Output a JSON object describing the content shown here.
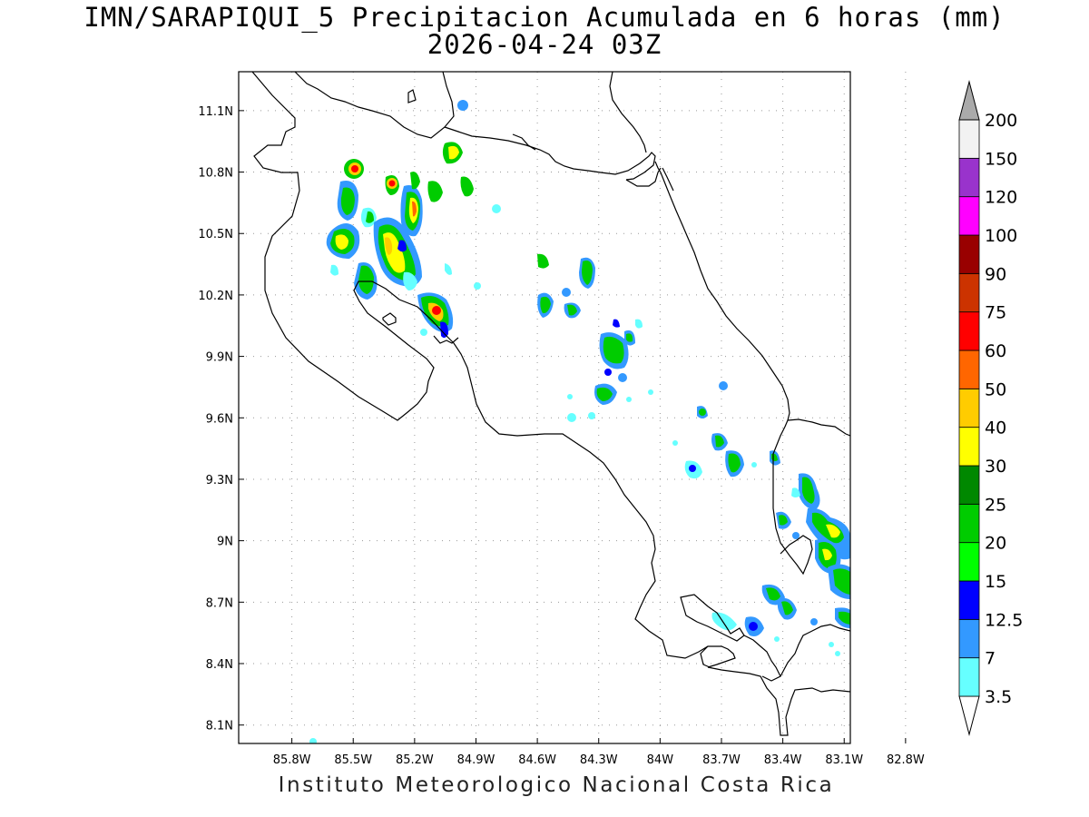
{
  "title": {
    "line1": "IMN/SARAPIQUI_5 Precipitacion Acumulada en 6 horas (mm)",
    "line2": "2026-04-24 03Z"
  },
  "footer": "Instituto Meteorologico Nacional Costa Rica",
  "map": {
    "lon_range": [
      -86.06,
      -83.07
    ],
    "lat_range": [
      8.01,
      11.29
    ],
    "lat_ticks": [
      "11.1N",
      "10.8N",
      "10.5N",
      "10.2N",
      "9.9N",
      "9.6N",
      "9.3N",
      "9N",
      "8.7N",
      "8.4N",
      "8.1N"
    ],
    "lat_values": [
      11.1,
      10.8,
      10.5,
      10.2,
      9.9,
      9.6,
      9.3,
      9.0,
      8.7,
      8.4,
      8.1
    ],
    "lon_ticks": [
      "85.8W",
      "85.5W",
      "85.2W",
      "84.9W",
      "84.6W",
      "84.3W",
      "84W",
      "83.7W",
      "83.4W",
      "83.1W",
      "82.8W"
    ],
    "lon_values": [
      -85.8,
      -85.5,
      -85.2,
      -84.9,
      -84.6,
      -84.3,
      -84.0,
      -83.7,
      -83.4,
      -83.1,
      -82.8
    ],
    "grid": true
  },
  "legend": {
    "labels": [
      "3.5",
      "7",
      "12.5",
      "15",
      "20",
      "25",
      "30",
      "40",
      "50",
      "60",
      "75",
      "90",
      "100",
      "120",
      "150",
      "200"
    ],
    "colors": [
      "#66ffff",
      "#3399ff",
      "#0000ff",
      "#00ff00",
      "#00cc00",
      "#008800",
      "#ffff00",
      "#ffcc00",
      "#ff6600",
      "#ff0000",
      "#cc3300",
      "#990000",
      "#ff00ff",
      "#9933cc",
      "#f2f2f2",
      "#aaaaaa"
    ]
  }
}
